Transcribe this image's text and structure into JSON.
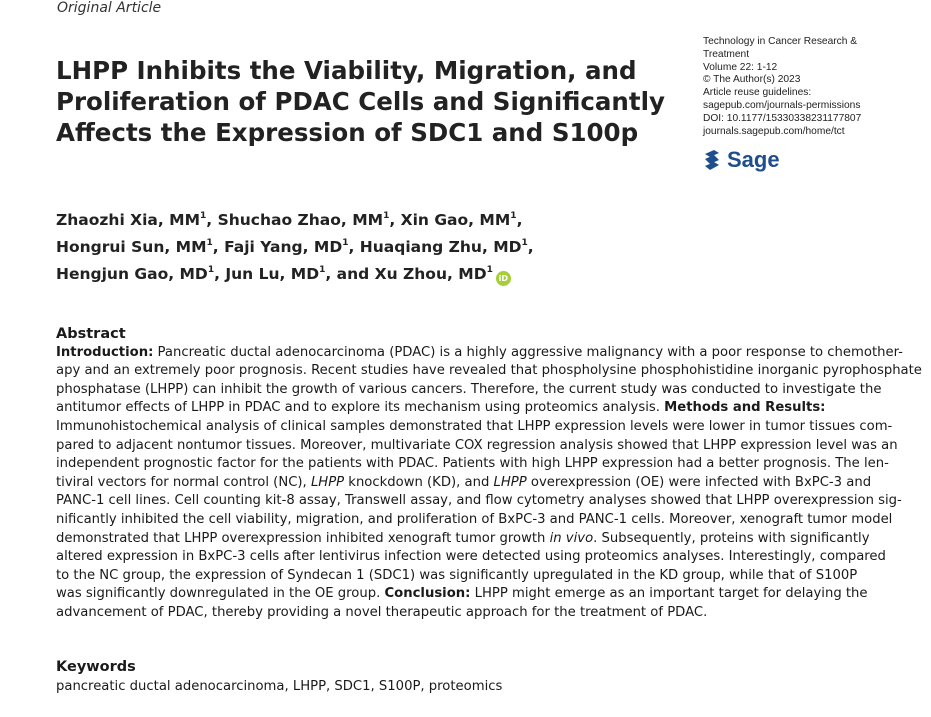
{
  "article_type": "Original Article",
  "title_lines": [
    "LHPP Inhibits the Viability, Migration, and",
    "Proliferation of PDAC Cells and Significantly",
    "Affects the Expression of SDC1 and S100p"
  ],
  "journal_info": [
    "Technology in Cancer Research &",
    "Treatment",
    "Volume 22: 1-12",
    "© The Author(s) 2023",
    "Article reuse guidelines:",
    "sagepub.com/journals-permissions",
    "DOI: 10.1177/15330338231177807",
    "journals.sagepub.com/home/tct"
  ],
  "publisher": "Sage",
  "authors": [
    {
      "name": "Zhaozhi Xia, MM",
      "aff": "1"
    },
    {
      "name": "Shuchao Zhao, MM",
      "aff": "1"
    },
    {
      "name": "Xin Gao, MM",
      "aff": "1"
    },
    {
      "name": "Hongrui Sun, MM",
      "aff": "1"
    },
    {
      "name": "Faji Yang, MD",
      "aff": "1"
    },
    {
      "name": "Huaqiang Zhu, MD",
      "aff": "1"
    },
    {
      "name": "Hengjun Gao, MD",
      "aff": "1"
    },
    {
      "name": "Jun Lu, MD",
      "aff": "1"
    },
    {
      "name": "Xu Zhou, MD",
      "aff": "1"
    }
  ],
  "orcid_label": "iD",
  "colors": {
    "orcid": "#a6ce39",
    "sage_blue": "#1e4e8c"
  },
  "abstract": {
    "heading": "Abstract",
    "lines": [
      [
        {
          "t": "Introduction:",
          "b": true
        },
        {
          "t": " Pancreatic ductal adenocarcinoma (PDAC) is a highly aggressive malignancy with a poor response to chemother-"
        }
      ],
      [
        {
          "t": "apy and an extremely poor prognosis. Recent studies have revealed that phospholysine phosphohistidine inorganic pyrophosphate"
        }
      ],
      [
        {
          "t": "phosphatase (LHPP) can inhibit the growth of various cancers. Therefore, the current study was conducted to investigate the"
        }
      ],
      [
        {
          "t": "antitumor effects of LHPP in PDAC and to explore its mechanism using proteomics analysis. "
        },
        {
          "t": "Methods and Results:",
          "b": true
        }
      ],
      [
        {
          "t": "Immunohistochemical analysis of clinical samples demonstrated that LHPP expression levels were lower in tumor tissues com-"
        }
      ],
      [
        {
          "t": "pared to adjacent nontumor tissues. Moreover, multivariate COX regression analysis showed that LHPP expression level was an"
        }
      ],
      [
        {
          "t": "independent prognostic factor for the patients with PDAC. Patients with high LHPP expression had a better prognosis. The len-"
        }
      ],
      [
        {
          "t": "tiviral vectors for normal control (NC), "
        },
        {
          "t": "LHPP",
          "i": true
        },
        {
          "t": " knockdown (KD), and "
        },
        {
          "t": "LHPP",
          "i": true
        },
        {
          "t": " overexpression (OE) were infected with BxPC-3 and"
        }
      ],
      [
        {
          "t": "PANC-1 cell lines. Cell counting kit-8 assay, Transwell assay, and flow cytometry analyses showed that LHPP overexpression sig-"
        }
      ],
      [
        {
          "t": "nificantly inhibited the cell viability, migration, and proliferation of BxPC-3 and PANC-1 cells. Moreover, xenograft tumor model"
        }
      ],
      [
        {
          "t": "demonstrated that LHPP overexpression inhibited xenograft tumor growth "
        },
        {
          "t": "in vivo",
          "i": true
        },
        {
          "t": ". Subsequently, proteins with significantly"
        }
      ],
      [
        {
          "t": "altered expression in BxPC-3 cells after lentivirus infection were detected using proteomics analyses. Interestingly, compared"
        }
      ],
      [
        {
          "t": "to the NC group, the expression of Syndecan 1 (SDC1) was significantly upregulated in the KD group, while that of S100P"
        }
      ],
      [
        {
          "t": "was significantly downregulated in the OE group. "
        },
        {
          "t": "Conclusion:",
          "b": true
        },
        {
          "t": " LHPP might emerge as an important target for delaying the"
        }
      ],
      [
        {
          "t": "advancement of PDAC, thereby providing a novel therapeutic approach for the treatment of PDAC."
        }
      ]
    ]
  },
  "keywords": {
    "heading": "Keywords",
    "text": "pancreatic ductal adenocarcinoma, LHPP, SDC1, S100P, proteomics"
  }
}
